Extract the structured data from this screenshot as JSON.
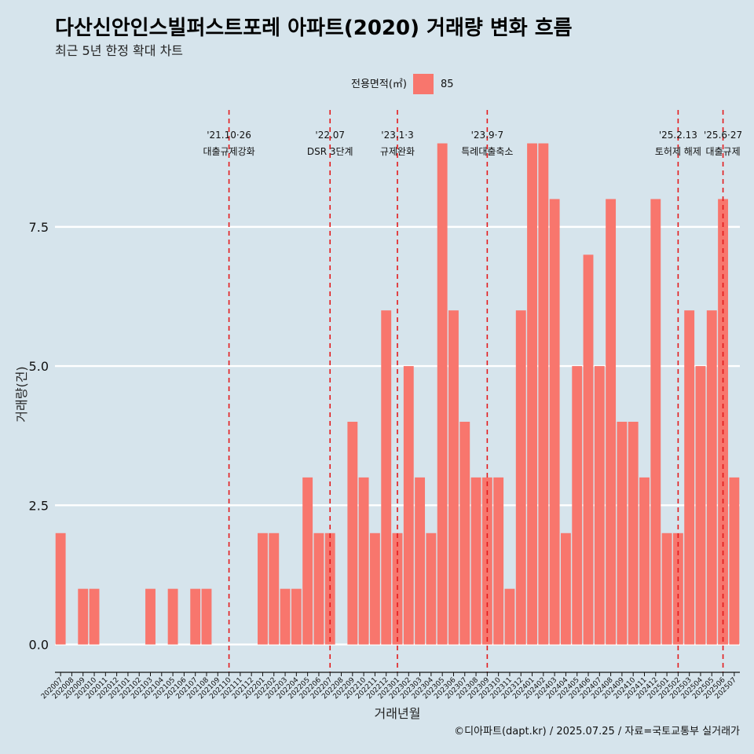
{
  "chart_data": {
    "type": "bar",
    "title": "다산신안인스빌퍼스트포레 아파트(2020) 거래량 변화 흐름",
    "subtitle": "최근 5년 한정 확대 차트",
    "xlabel": "거래년월",
    "ylabel": "거래량(건)",
    "ylim": [
      -0.5,
      9.6
    ],
    "yticks": [
      0,
      2.5,
      5,
      7.5
    ],
    "ytick_labels": [
      "0.0",
      "2.5",
      "5.0",
      "7.5"
    ],
    "legend": {
      "title": "전용면적(㎡)",
      "position": "top"
    },
    "grid": true,
    "categories": [
      "202007",
      "202008",
      "202009",
      "202010",
      "202011",
      "202012",
      "202101",
      "202102",
      "202103",
      "202104",
      "202105",
      "202106",
      "202107",
      "202108",
      "202109",
      "202110",
      "202111",
      "202112",
      "202201",
      "202202",
      "202203",
      "202204",
      "202205",
      "202206",
      "202207",
      "202208",
      "202209",
      "202210",
      "202211",
      "202212",
      "202301",
      "202302",
      "202303",
      "202304",
      "202305",
      "202306",
      "202307",
      "202308",
      "202309",
      "202310",
      "202311",
      "202312",
      "202401",
      "202402",
      "202403",
      "202404",
      "202405",
      "202406",
      "202407",
      "202408",
      "202409",
      "202410",
      "202411",
      "202412",
      "202501",
      "202502",
      "202503",
      "202504",
      "202505",
      "202506",
      "202507"
    ],
    "series": [
      {
        "name": "85",
        "color": "#f8766d",
        "values": [
          2,
          0,
          1,
          1,
          0,
          0,
          0,
          0,
          1,
          0,
          1,
          0,
          1,
          1,
          0,
          0,
          0,
          0,
          2,
          2,
          1,
          1,
          3,
          2,
          2,
          0,
          4,
          3,
          2,
          6,
          2,
          5,
          3,
          2,
          9,
          6,
          4,
          3,
          3,
          3,
          1,
          6,
          9,
          9,
          8,
          2,
          5,
          7,
          5,
          8,
          4,
          4,
          3,
          8,
          2,
          2,
          6,
          5,
          6,
          8,
          3
        ]
      }
    ],
    "events": [
      {
        "x": "202110",
        "date": "'21.10·26",
        "label": "대출규제강화"
      },
      {
        "x": "202207",
        "date": "'22.07",
        "label": "DSR 3단계"
      },
      {
        "x": "202301",
        "date": "'23.1·3",
        "label": "규제완화"
      },
      {
        "x": "202309",
        "date": "'23.9·7",
        "label": "특례대출축소"
      },
      {
        "x": "202502",
        "date": "'25.2.13",
        "label": "토허제 해제"
      },
      {
        "x": "202506",
        "date": "'25.6·27",
        "label": "대출규제"
      }
    ],
    "event_line_color": "#e31a1c"
  },
  "caption": "©디아파트(dapt.kr) / 2025.07.25 / 자료=국토교통부 실거래가"
}
